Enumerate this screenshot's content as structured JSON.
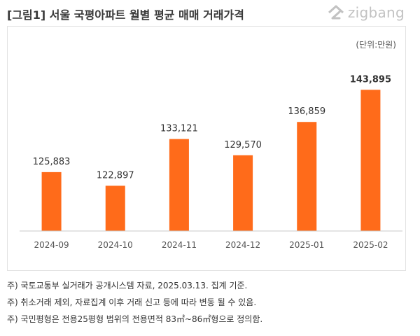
{
  "header": {
    "title": "[그림1] 서울  국평아파트 월별 평균 매매 거래가격",
    "logo_text": "zigbang",
    "logo_icon": "zigbang-house-icon"
  },
  "unit_label": "(단위:만원)",
  "colors": {
    "bar": "#ff6b1a",
    "axis": "#c8c8c8",
    "panel_border": "#e2e2e2"
  },
  "chart_data": {
    "type": "bar",
    "title": "",
    "xlabel": "",
    "ylabel": "",
    "categories": [
      "2024-09",
      "2024-10",
      "2024-11",
      "2024-12",
      "2025-01",
      "2025-02"
    ],
    "values": [
      125883,
      122897,
      133121,
      129570,
      136859,
      143895
    ],
    "value_labels": [
      "125,883",
      "122,897",
      "133,121",
      "129,570",
      "136,859",
      "143,895"
    ],
    "bold_labels": [
      false,
      false,
      false,
      false,
      false,
      true
    ],
    "ylim": [
      113000,
      147000
    ],
    "grid": false,
    "legend": "none"
  },
  "notes": [
    "주) 국토교통부 실거래가 공개시스템 자료, 2025.03.13. 집계 기준.",
    "주) 취소거래 제외, 자료집계 이후 거래 신고 등에 따라 변동 될 수 있음.",
    "주) 국민평형은 전용25평형 범위의 전용면적 83㎡~86㎡형으로 정의함."
  ]
}
